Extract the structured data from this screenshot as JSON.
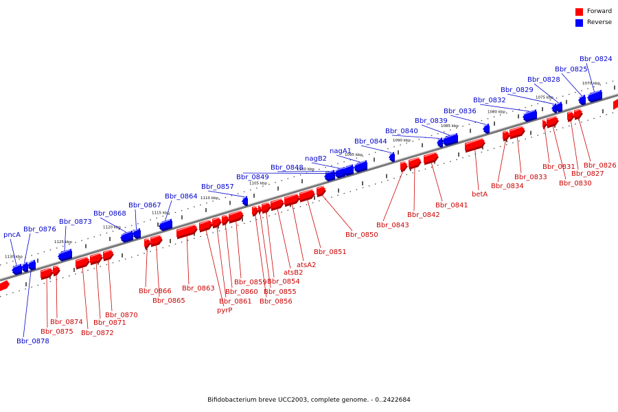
{
  "legend": {
    "forward": {
      "label": "Forward",
      "color": "#ff0000"
    },
    "reverse": {
      "label": "Reverse",
      "color": "#0000ff"
    }
  },
  "caption": "Bifidobacterium breve UCC2003, complete genome. - 0..2422684",
  "tick_labels": [
    "1070 kbp",
    "1075 kbp",
    "1080 kbp",
    "1085 kbp",
    "1090 kbp",
    "1095 kbp",
    "1100 kbp",
    "1105 kbp",
    "1110 kbp",
    "1115 kbp",
    "1120 kbp",
    "1125 kbp",
    "1130 kbp"
  ],
  "genes": [
    {
      "name": "Bbr_0824",
      "strand": "reverse"
    },
    {
      "name": "Bbr_0825",
      "strand": "reverse"
    },
    {
      "name": "Bbr_0828",
      "strand": "reverse"
    },
    {
      "name": "Bbr_0829",
      "strand": "reverse"
    },
    {
      "name": "Bbr_0832",
      "strand": "reverse"
    },
    {
      "name": "Bbr_0836",
      "strand": "reverse"
    },
    {
      "name": "Bbr_0839",
      "strand": "reverse"
    },
    {
      "name": "Bbr_0840",
      "strand": "reverse"
    },
    {
      "name": "Bbr_0844",
      "strand": "reverse"
    },
    {
      "name": "nagA1",
      "strand": "reverse"
    },
    {
      "name": "nagB2",
      "strand": "reverse"
    },
    {
      "name": "Bbr_0848",
      "strand": "reverse"
    },
    {
      "name": "Bbr_0849",
      "strand": "reverse"
    },
    {
      "name": "Bbr_0857",
      "strand": "reverse"
    },
    {
      "name": "Bbr_0864",
      "strand": "reverse"
    },
    {
      "name": "Bbr_0867",
      "strand": "reverse"
    },
    {
      "name": "Bbr_0868",
      "strand": "reverse"
    },
    {
      "name": "Bbr_0873",
      "strand": "reverse"
    },
    {
      "name": "Bbr_0876",
      "strand": "reverse"
    },
    {
      "name": "pncA",
      "strand": "reverse"
    },
    {
      "name": "Bbr_0878",
      "strand": "reverse"
    },
    {
      "name": "Bbr_0826",
      "strand": "forward"
    },
    {
      "name": "Bbr_0827",
      "strand": "forward"
    },
    {
      "name": "Bbr_0830",
      "strand": "forward"
    },
    {
      "name": "Bbr_0831",
      "strand": "forward"
    },
    {
      "name": "Bbr_0833",
      "strand": "forward"
    },
    {
      "name": "Bbr_0834",
      "strand": "forward"
    },
    {
      "name": "betA",
      "strand": "forward"
    },
    {
      "name": "Bbr_0841",
      "strand": "forward"
    },
    {
      "name": "Bbr_0842",
      "strand": "forward"
    },
    {
      "name": "Bbr_0843",
      "strand": "forward"
    },
    {
      "name": "Bbr_0850",
      "strand": "forward"
    },
    {
      "name": "Bbr_0851",
      "strand": "forward"
    },
    {
      "name": "atsA2",
      "strand": "forward"
    },
    {
      "name": "atsB2",
      "strand": "forward"
    },
    {
      "name": "Bbr_0854",
      "strand": "forward"
    },
    {
      "name": "Bbr_0855",
      "strand": "forward"
    },
    {
      "name": "Bbr_0856",
      "strand": "forward"
    },
    {
      "name": "Bbr_0859",
      "strand": "forward"
    },
    {
      "name": "Bbr_0860",
      "strand": "forward"
    },
    {
      "name": "Bbr_0861",
      "strand": "forward"
    },
    {
      "name": "pyrP",
      "strand": "forward"
    },
    {
      "name": "Bbr_0863",
      "strand": "forward"
    },
    {
      "name": "Bbr_0865",
      "strand": "forward"
    },
    {
      "name": "Bbr_0866",
      "strand": "forward"
    },
    {
      "name": "Bbr_0870",
      "strand": "forward"
    },
    {
      "name": "Bbr_0871",
      "strand": "forward"
    },
    {
      "name": "Bbr_0872",
      "strand": "forward"
    },
    {
      "name": "Bbr_0874",
      "strand": "forward"
    },
    {
      "name": "Bbr_0875",
      "strand": "forward"
    }
  ]
}
